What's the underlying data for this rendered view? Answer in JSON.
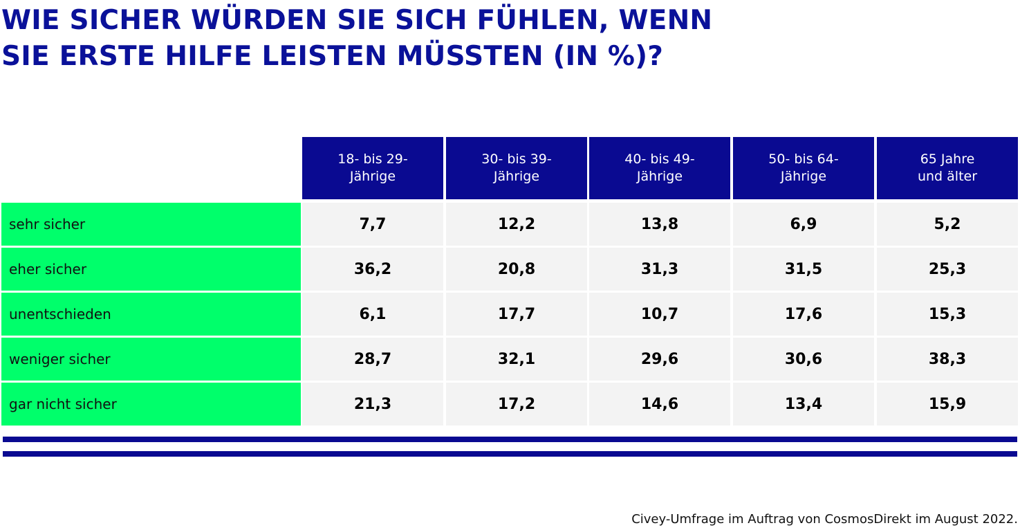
{
  "chart_data": {
    "type": "table",
    "title_lines": [
      "WIE SICHER WÜRDEN SIE SICH FÜHLEN, WENN",
      "SIE ERSTE HILFE LEISTEN MÜSSTEN (IN %)?"
    ],
    "columns": [
      {
        "line1": "18- bis 29-",
        "line2": "Jährige"
      },
      {
        "line1": "30- bis 39-",
        "line2": "Jährige"
      },
      {
        "line1": "40- bis 49-",
        "line2": "Jährige"
      },
      {
        "line1": "50- bis 64-",
        "line2": "Jährige"
      },
      {
        "line1": "65 Jahre",
        "line2": "und älter"
      }
    ],
    "rows": [
      {
        "label": "sehr sicher",
        "values": [
          "7,7",
          "12,2",
          "13,8",
          "6,9",
          "5,2"
        ]
      },
      {
        "label": "eher sicher",
        "values": [
          "36,2",
          "20,8",
          "31,3",
          "31,5",
          "25,3"
        ]
      },
      {
        "label": "unentschieden",
        "values": [
          "6,1",
          "17,7",
          "10,7",
          "17,6",
          "15,3"
        ]
      },
      {
        "label": "weniger sicher",
        "values": [
          "28,7",
          "32,1",
          "29,6",
          "30,6",
          "38,3"
        ]
      },
      {
        "label": "gar nicht sicher",
        "values": [
          "21,3",
          "17,2",
          "14,6",
          "13,4",
          "15,9"
        ]
      }
    ],
    "source": "Civey-Umfrage im Auftrag von CosmosDirekt im August 2022."
  },
  "colors": {
    "header_bg": "#0a0a91",
    "label_bg": "#00ff6b",
    "cell_bg": "#f3f3f3",
    "title": "#0a1199"
  }
}
